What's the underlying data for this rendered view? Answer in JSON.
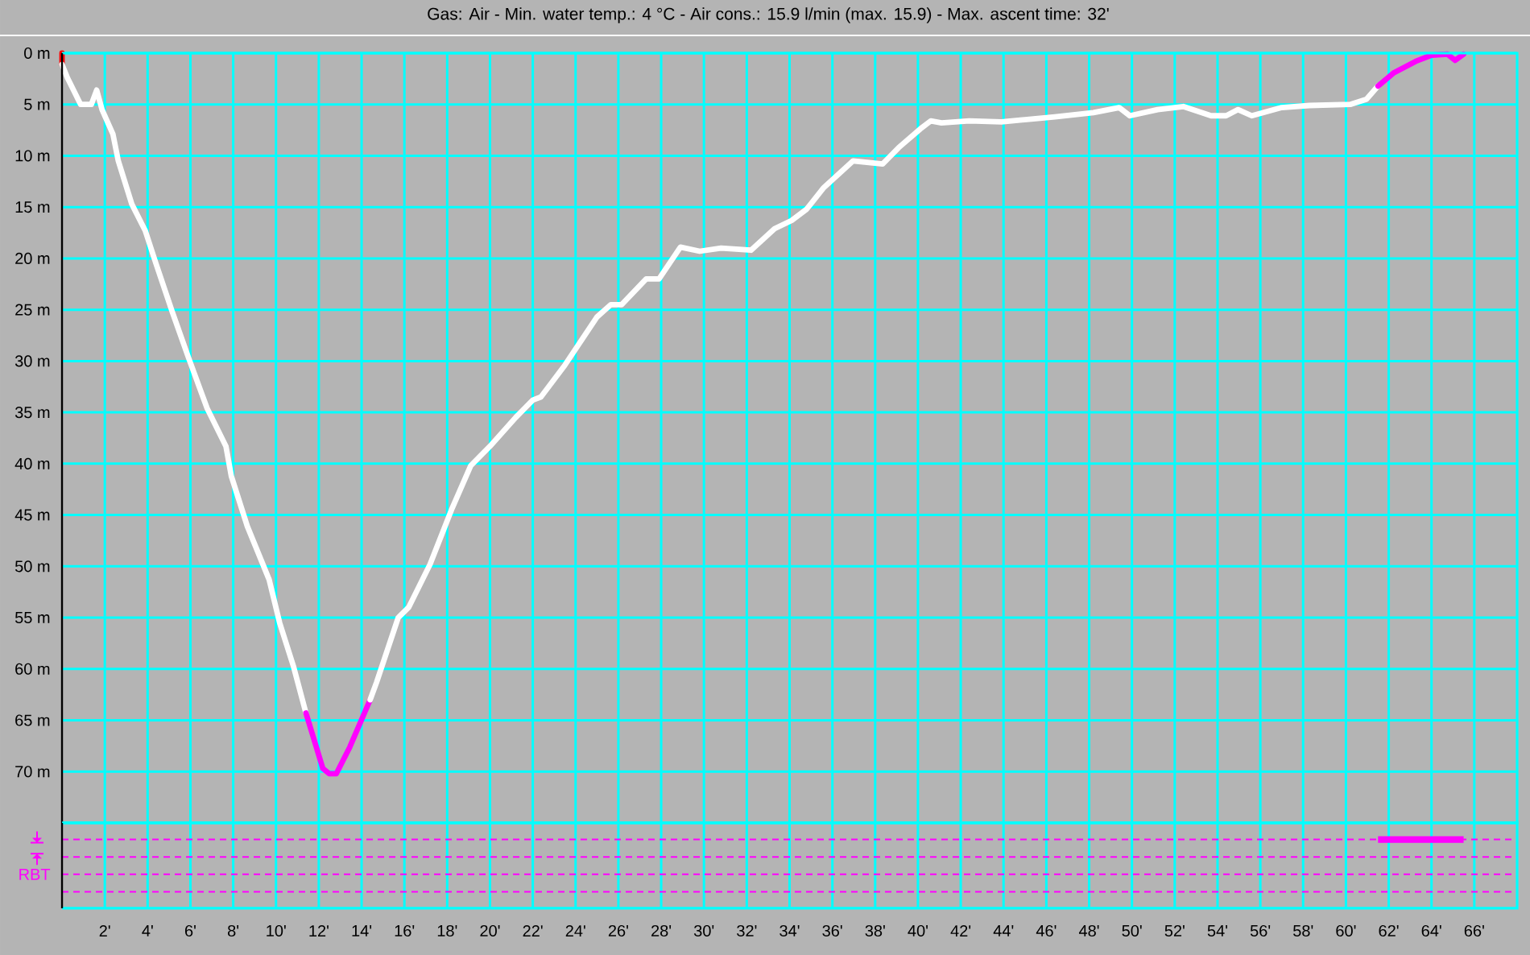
{
  "chart_data": [
    {
      "type": "line",
      "title": "Gas: Air - Min. water temp.: 4 °C - Air cons.: 15.9 l/min (max. 15.9) - Max. ascent time: 32'",
      "series": [
        {
          "color": "#ff0000",
          "x": [
            0,
            0
          ],
          "values": [
            0,
            1.1
          ]
        },
        {
          "color": "#ffffff",
          "x": [
            0,
            0.25,
            0.87,
            1.37,
            1.62,
            1.87,
            2.38,
            2.63,
            3.26,
            3.89,
            4.39,
            5.15,
            5.9,
            6.78,
            7.66,
            7.91,
            8.66,
            9.68,
            10.17,
            10.81,
            11.4
          ],
          "values": [
            1.1,
            2.4,
            5.0,
            5.0,
            3.6,
            5.5,
            7.9,
            10.5,
            14.7,
            17.3,
            20.5,
            25.2,
            29.6,
            34.6,
            38.3,
            41.2,
            46.1,
            51.3,
            55.5,
            59.7,
            64.3
          ]
        },
        {
          "color": "#ff00ff",
          "x": [
            11.4,
            12.19,
            12.49,
            12.82,
            13.45,
            14.4
          ],
          "values": [
            64.3,
            69.7,
            70.2,
            70.2,
            67.6,
            63.0
          ]
        },
        {
          "color": "#ffffff",
          "x": [
            14.4,
            14.7,
            15.71,
            16.2,
            17.2,
            18.2,
            19.1,
            20.0,
            21.2,
            22.0,
            22.38,
            23.5,
            25.0,
            25.65,
            26.15,
            27.3,
            27.9,
            28.9,
            29.8,
            30.8,
            32.2,
            33.3,
            34.1,
            34.8,
            35.6,
            36.97,
            38.35,
            39.1,
            40.1,
            40.6,
            41.1,
            42.4,
            43.9,
            45.4,
            46.4,
            48.2,
            49.4,
            49.9,
            51.2,
            52.4,
            53.7,
            54.4,
            54.96,
            55.6,
            57.0,
            58.3,
            60.2,
            60.96,
            61.5
          ],
          "values": [
            63.0,
            61.3,
            55.0,
            54.0,
            49.8,
            44.5,
            40.2,
            38.3,
            35.5,
            33.8,
            33.5,
            30.4,
            25.7,
            24.5,
            24.5,
            22.0,
            22.0,
            18.9,
            19.3,
            19.0,
            19.2,
            17.1,
            16.3,
            15.2,
            13.1,
            10.5,
            10.8,
            9.2,
            7.4,
            6.6,
            6.8,
            6.6,
            6.7,
            6.4,
            6.2,
            5.8,
            5.3,
            6.1,
            5.5,
            5.2,
            6.1,
            6.1,
            5.5,
            6.1,
            5.3,
            5.1,
            5.0,
            4.5,
            3.2
          ]
        },
        {
          "color": "#ff00ff",
          "x": [
            61.5,
            62.25,
            63.26,
            64.0,
            64.75,
            65.1,
            65.5
          ],
          "values": [
            3.2,
            1.9,
            0.8,
            0.2,
            0.1,
            0.7,
            0.1
          ]
        }
      ],
      "xlim": [
        0,
        68
      ],
      "xticks": [
        2,
        4,
        6,
        8,
        10,
        12,
        14,
        16,
        18,
        20,
        22,
        24,
        26,
        28,
        30,
        32,
        34,
        36,
        38,
        40,
        42,
        44,
        46,
        48,
        50,
        52,
        54,
        56,
        58,
        60,
        62,
        64,
        66
      ],
      "ylim": [
        75,
        0
      ],
      "yticks": [
        {
          "value": 0,
          "label": "0 m"
        },
        {
          "value": 5,
          "label": "5 m"
        },
        {
          "value": 10,
          "label": "10 m"
        },
        {
          "value": 15,
          "label": "15 m"
        },
        {
          "value": 20,
          "label": "20 m"
        },
        {
          "value": 25,
          "label": "25 m"
        },
        {
          "value": 30,
          "label": "30 m"
        },
        {
          "value": 35,
          "label": "35 m"
        },
        {
          "value": 40,
          "label": "40 m"
        },
        {
          "value": 45,
          "label": "45 m"
        },
        {
          "value": 50,
          "label": "50 m"
        },
        {
          "value": 55,
          "label": "55 m"
        },
        {
          "value": 60,
          "label": "60 m"
        },
        {
          "value": 65,
          "label": "65 m"
        },
        {
          "value": 70,
          "label": "70 m"
        }
      ],
      "grid": true,
      "tick_labels": "y"
    },
    {
      "type": "bar",
      "orientation": "horizontal",
      "categories": [
        null,
        null,
        "RBT",
        null
      ],
      "base": [
        61.5,
        null,
        null,
        null
      ],
      "values": [
        4.0,
        null,
        null,
        null
      ],
      "color": "#ff00ff",
      "xlim": [
        0,
        68
      ],
      "xticks": [
        {
          "value": 2,
          "label": "2'"
        },
        {
          "value": 4,
          "label": "4'"
        },
        {
          "value": 6,
          "label": "6'"
        },
        {
          "value": 8,
          "label": "8'"
        },
        {
          "value": 10,
          "label": "10'"
        },
        {
          "value": 12,
          "label": "12'"
        },
        {
          "value": 14,
          "label": "14'"
        },
        {
          "value": 16,
          "label": "16'"
        },
        {
          "value": 18,
          "label": "18'"
        },
        {
          "value": 20,
          "label": "20'"
        },
        {
          "value": 22,
          "label": "22'"
        },
        {
          "value": 24,
          "label": "24'"
        },
        {
          "value": 26,
          "label": "26'"
        },
        {
          "value": 28,
          "label": "28'"
        },
        {
          "value": 30,
          "label": "30'"
        },
        {
          "value": 32,
          "label": "32'"
        },
        {
          "value": 34,
          "label": "34'"
        },
        {
          "value": 36,
          "label": "36'"
        },
        {
          "value": 38,
          "label": "38'"
        },
        {
          "value": 40,
          "label": "40'"
        },
        {
          "value": 42,
          "label": "42'"
        },
        {
          "value": 44,
          "label": "44'"
        },
        {
          "value": 46,
          "label": "46'"
        },
        {
          "value": 48,
          "label": "48'"
        },
        {
          "value": 50,
          "label": "50'"
        },
        {
          "value": 52,
          "label": "52'"
        },
        {
          "value": 54,
          "label": "54'"
        },
        {
          "value": 56,
          "label": "56'"
        },
        {
          "value": 58,
          "label": "58'"
        },
        {
          "value": 60,
          "label": "60'"
        },
        {
          "value": 62,
          "label": "62'"
        },
        {
          "value": 64,
          "label": "64'"
        },
        {
          "value": 66,
          "label": "66'"
        }
      ],
      "grid": true
    }
  ]
}
